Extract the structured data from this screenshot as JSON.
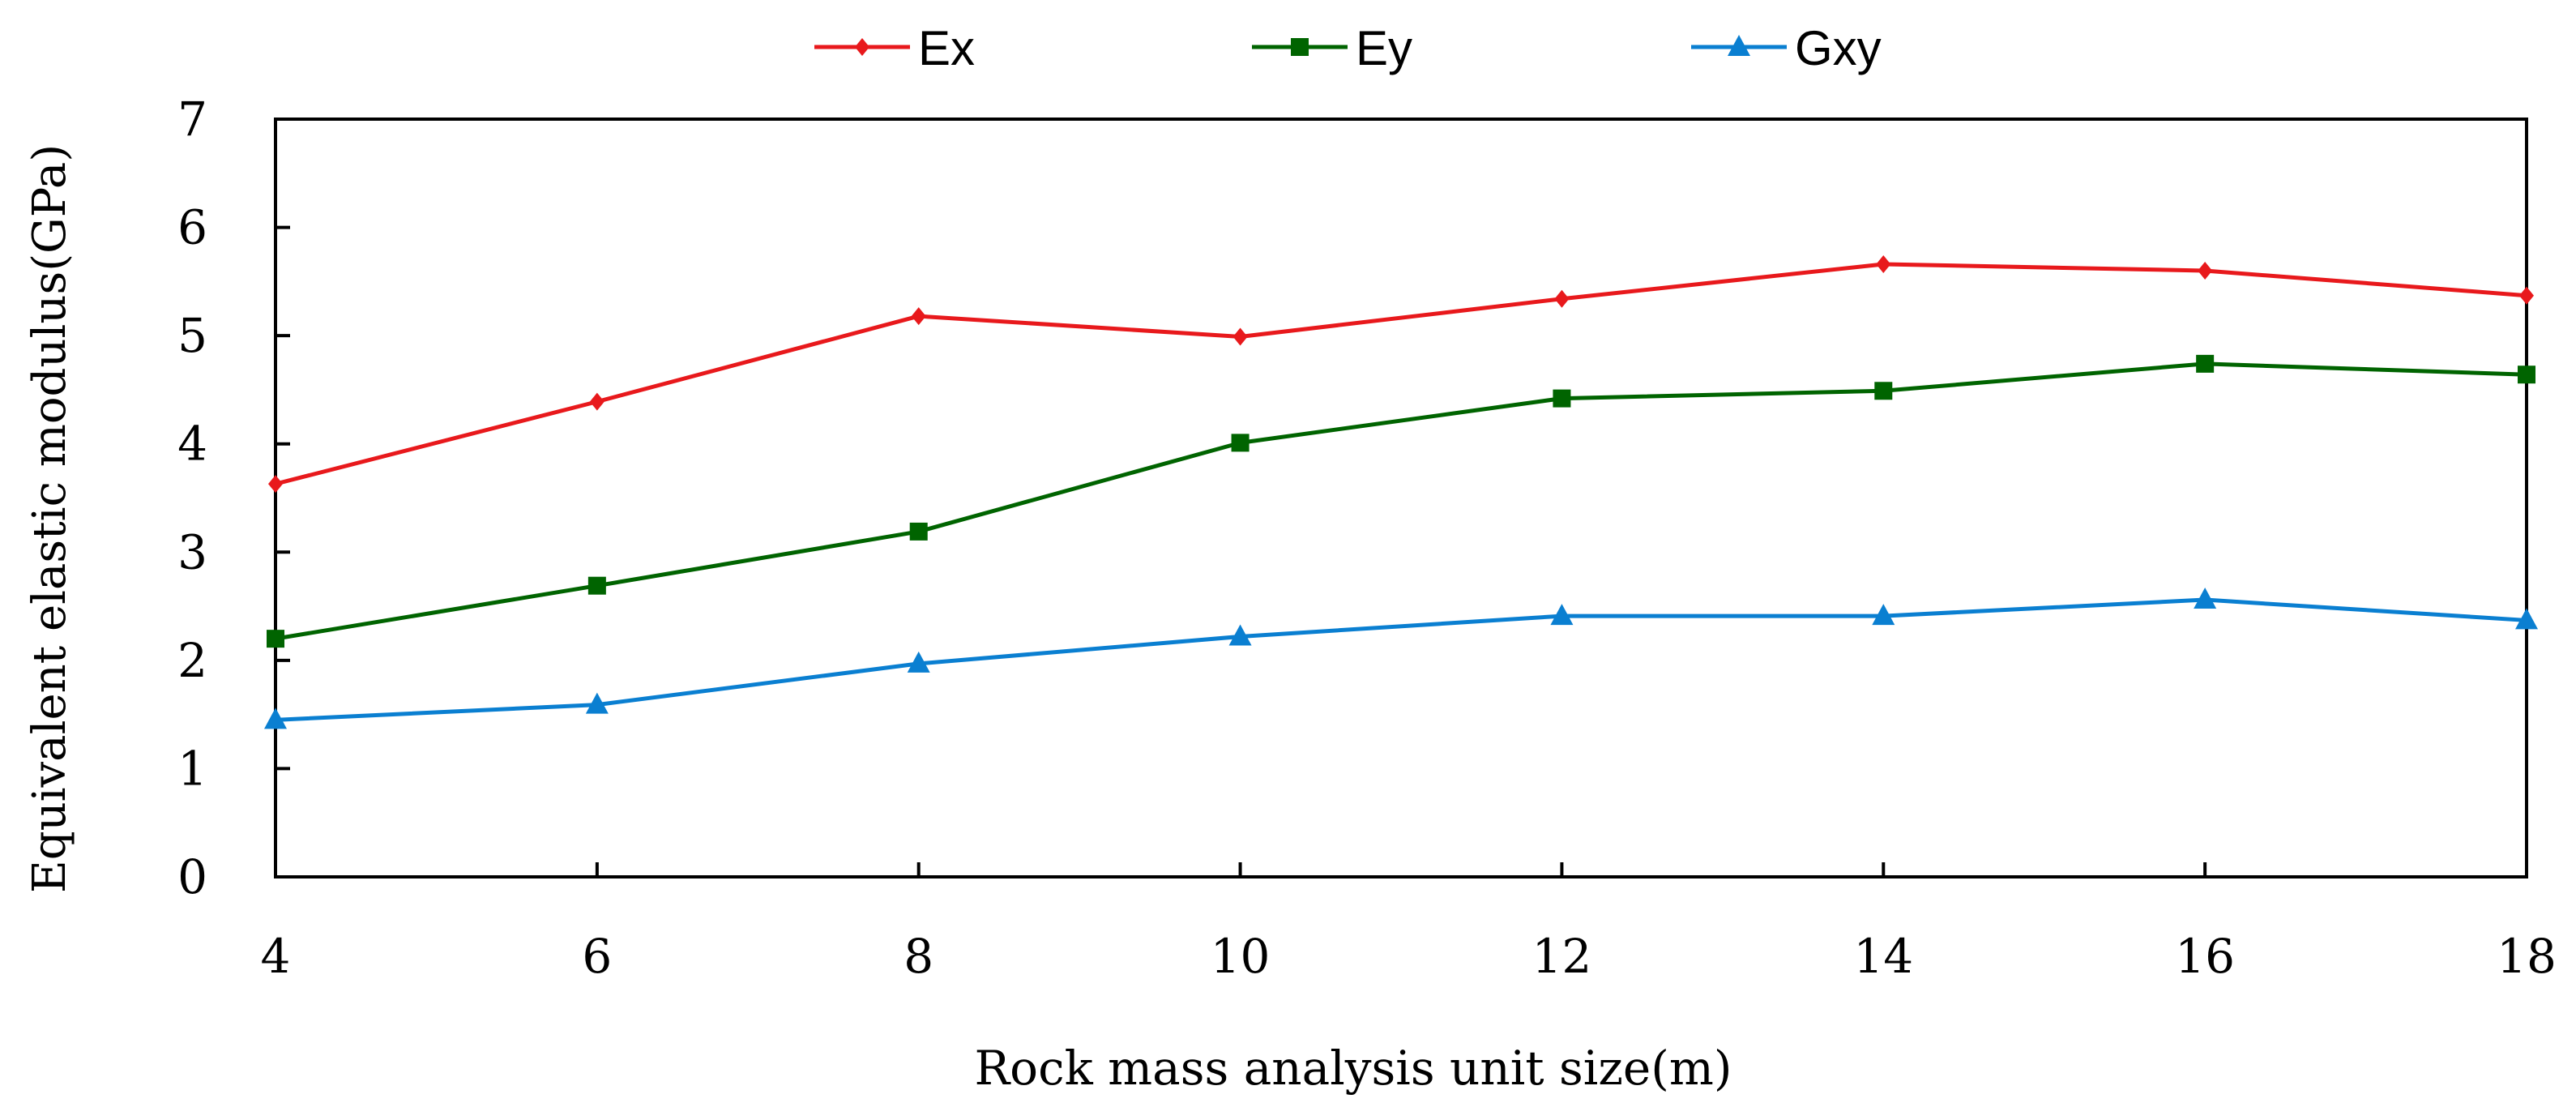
{
  "chart_data": {
    "type": "line",
    "title": "",
    "xlabel": "Rock mass analysis unit size(m)",
    "ylabel": "Equivalent elastic modulus(GPa)",
    "x": [
      4,
      6,
      8,
      10,
      12,
      14,
      16,
      18
    ],
    "xlim": [
      4,
      18
    ],
    "ylim": [
      0,
      7
    ],
    "x_ticks": [
      "4",
      "6",
      "8",
      "10",
      "12",
      "14",
      "16",
      "18"
    ],
    "y_ticks": [
      "0",
      "1",
      "2",
      "3",
      "4",
      "5",
      "6",
      "7"
    ],
    "grid": false,
    "legend_position": "top-center",
    "series": [
      {
        "name": "Ex",
        "color": "#e8191c",
        "marker": "diamond",
        "values": [
          3.63,
          4.39,
          5.18,
          4.99,
          5.34,
          5.66,
          5.6,
          5.37
        ]
      },
      {
        "name": "Ey",
        "color": "#006400",
        "marker": "square",
        "values": [
          2.2,
          2.69,
          3.19,
          4.01,
          4.42,
          4.49,
          4.74,
          4.64
        ]
      },
      {
        "name": "Gxy",
        "color": "#0a7fd1",
        "marker": "triangle",
        "values": [
          1.45,
          1.59,
          1.97,
          2.22,
          2.41,
          2.41,
          2.56,
          2.37
        ]
      }
    ]
  }
}
